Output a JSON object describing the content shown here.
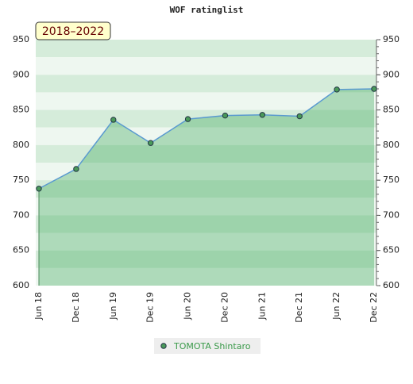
{
  "chart_data": {
    "type": "area",
    "title": "WOF ratinglist",
    "annotation": "2018–2022",
    "categories": [
      "Jun 18",
      "Dec 18",
      "Jun 19",
      "Dec 19",
      "Jun 20",
      "Dec 20",
      "Jun 21",
      "Dec 21",
      "Jun 22",
      "Dec 22"
    ],
    "series": [
      {
        "name": "TOMOTA Shintaro",
        "color": "#4a9a5a",
        "values": [
          738,
          766,
          836,
          803,
          837,
          842,
          843,
          841,
          879,
          880
        ]
      }
    ],
    "ylim": [
      600,
      950
    ],
    "yticks": [
      600,
      650,
      700,
      750,
      800,
      850,
      900,
      950
    ]
  }
}
